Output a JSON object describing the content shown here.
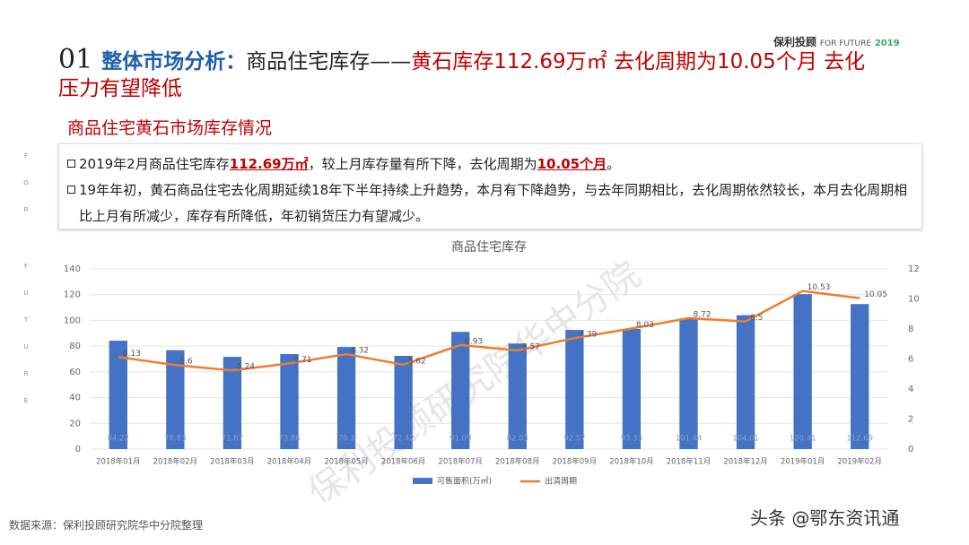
{
  "header": {
    "number": "01",
    "title_prefix": "整体市场分析：",
    "title_topic": "商品住宅库存——",
    "title_highlight": "黄石库存112.69万㎡ 去化周期为10.05个月 去化压力有望降低",
    "logo_brand": "保利投顾",
    "logo_slogan": "FOR FUTURE",
    "logo_year": "2019"
  },
  "side_text": [
    "F",
    "O",
    "R",
    "F",
    "U",
    "T",
    "U",
    "R",
    "E"
  ],
  "section_title": "商品住宅黄石市场库存情况",
  "bullets": [
    [
      "2019年2月商品住宅库存",
      "112.69万㎡",
      "，较上月库存量有所下降，去化周期为",
      "10.05个月",
      "。"
    ],
    [
      "19年年初，黄石商品住宅去化周期延续18年下半年持续上升趋势，本月有下降趋势，与去年同期相比，去化周期依然较长，本月去化周期相比上月有所减少，库存有所降低，年初销货压力有望减少。"
    ]
  ],
  "chart_data": {
    "type": "bar",
    "title": "商品住宅库存",
    "categories": [
      "2018年01月",
      "2018年02月",
      "2018年03月",
      "2018年04月",
      "2018年05月",
      "2018年06月",
      "2018年07月",
      "2018年08月",
      "2018年09月",
      "2018年10月",
      "2018年11月",
      "2018年12月",
      "2019年01月",
      "2019年02月"
    ],
    "series": [
      {
        "name": "可售面积(万㎡)",
        "color": "#4472c4",
        "values": [
          84.22,
          76.83,
          71.67,
          73.86,
          79.3,
          72.42,
          91.09,
          82.03,
          92.57,
          93.33,
          101.44,
          104.01,
          120.41,
          112.69
        ]
      },
      {
        "name": "出清周期",
        "color": "#ed7d31",
        "type": "line",
        "axis": "y2",
        "values": [
          6.13,
          5.6,
          5.24,
          5.71,
          6.32,
          5.62,
          6.93,
          6.57,
          7.39,
          8.03,
          8.72,
          8.5,
          10.53,
          10.05
        ]
      }
    ],
    "ylim": [
      0,
      140
    ],
    "yticks": [
      0,
      20,
      40,
      60,
      80,
      100,
      120,
      140
    ],
    "y2lim": [
      0,
      12
    ],
    "y2ticks": [
      0,
      2,
      4,
      6,
      8,
      10,
      12
    ],
    "grid": true,
    "legend": "bottom"
  },
  "watermark": "保利投顾研究院华中分院",
  "source": "数据来源：保利投顾研究院华中分院整理",
  "credit": "头条 @鄂东资讯通"
}
